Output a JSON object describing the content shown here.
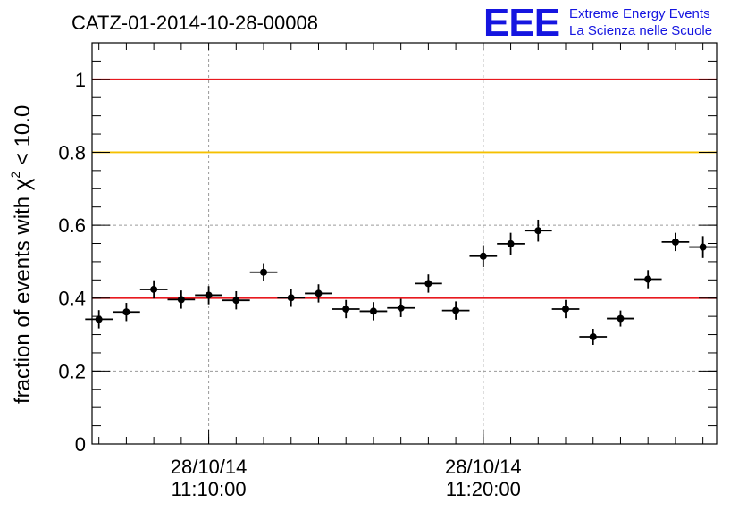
{
  "chart_data": {
    "type": "scatter",
    "title": "CATZ-01-2014-10-28-00008",
    "ylabel_prefix": "fraction of events with ",
    "ylabel_symbol": "χ",
    "ylabel_sup": "2",
    "ylabel_suffix": " < 10.0",
    "ylim": [
      0,
      1.1
    ],
    "yticks": [
      "0",
      "0.2",
      "0.4",
      "0.6",
      "0.8",
      "1"
    ],
    "xlim": [
      "11:05:45",
      "11:28:30"
    ],
    "xticks": [
      {
        "date": "28/10/14",
        "time": "11:10:00"
      },
      {
        "date": "28/10/14",
        "time": "11:20:00"
      }
    ],
    "grid": true,
    "reference_lines": [
      {
        "y": 1.0,
        "color": "#e8191f"
      },
      {
        "y": 0.8,
        "color": "#f5c000"
      },
      {
        "y": 0.4,
        "color": "#e8191f"
      }
    ],
    "series": [
      {
        "color": "#000000",
        "x_halfwidth_min": 0.5,
        "points": [
          {
            "x": "11:06:00",
            "y": 0.342,
            "err": 0.025
          },
          {
            "x": "11:07:00",
            "y": 0.362,
            "err": 0.025
          },
          {
            "x": "11:08:00",
            "y": 0.424,
            "err": 0.025
          },
          {
            "x": "11:09:00",
            "y": 0.396,
            "err": 0.025
          },
          {
            "x": "11:10:00",
            "y": 0.408,
            "err": 0.025
          },
          {
            "x": "11:11:00",
            "y": 0.394,
            "err": 0.025
          },
          {
            "x": "11:12:00",
            "y": 0.471,
            "err": 0.025
          },
          {
            "x": "11:13:00",
            "y": 0.401,
            "err": 0.025
          },
          {
            "x": "11:14:00",
            "y": 0.413,
            "err": 0.025
          },
          {
            "x": "11:15:00",
            "y": 0.37,
            "err": 0.025
          },
          {
            "x": "11:16:00",
            "y": 0.364,
            "err": 0.025
          },
          {
            "x": "11:17:00",
            "y": 0.373,
            "err": 0.025
          },
          {
            "x": "11:18:00",
            "y": 0.44,
            "err": 0.025
          },
          {
            "x": "11:19:00",
            "y": 0.366,
            "err": 0.025
          },
          {
            "x": "11:20:00",
            "y": 0.515,
            "err": 0.03
          },
          {
            "x": "11:21:00",
            "y": 0.549,
            "err": 0.03
          },
          {
            "x": "11:22:00",
            "y": 0.585,
            "err": 0.03
          },
          {
            "x": "11:23:00",
            "y": 0.37,
            "err": 0.025
          },
          {
            "x": "11:24:00",
            "y": 0.294,
            "err": 0.022
          },
          {
            "x": "11:25:00",
            "y": 0.344,
            "err": 0.022
          },
          {
            "x": "11:26:00",
            "y": 0.452,
            "err": 0.025
          },
          {
            "x": "11:27:00",
            "y": 0.554,
            "err": 0.025
          },
          {
            "x": "11:28:00",
            "y": 0.54,
            "err": 0.03
          }
        ]
      }
    ]
  },
  "logo": {
    "mark": "EEE",
    "line1": "Extreme Energy Events",
    "line2": "La Scienza nelle Scuole"
  }
}
